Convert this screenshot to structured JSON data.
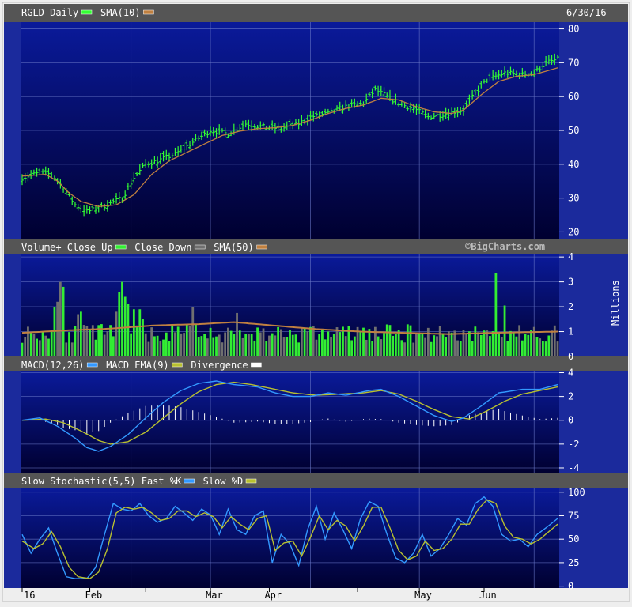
{
  "date_label": "6/30/16",
  "watermark": "©BigCharts.com",
  "x_labels": [
    "16",
    "Feb",
    "Mar",
    "Apr",
    "May",
    "Jun"
  ],
  "colors": {
    "header_bg": "#555555",
    "panel_top": "#0a1a9a",
    "panel_bottom": "#000030",
    "grid": "#6a78c8",
    "price_bar": "#33ff33",
    "sma": "#c08040",
    "vol_up": "#33ee33",
    "vol_down": "#707070",
    "macd": "#3399ff",
    "macd_ema": "#b8c030",
    "divergence": "#ffffff",
    "fast_k": "#3399ff",
    "slow_d": "#b8c030"
  },
  "chart_data": [
    {
      "id": "price",
      "type": "ohlc",
      "legend": [
        {
          "label": "RGLD Daily",
          "color": "#33ff33"
        },
        {
          "label": "SMA(10)",
          "color": "#c08040"
        }
      ],
      "ylim": [
        18,
        82
      ],
      "yticks": [
        20,
        30,
        40,
        50,
        60,
        70,
        80
      ],
      "anchors_close": [
        [
          0,
          36
        ],
        [
          6,
          37.5
        ],
        [
          10,
          37
        ],
        [
          14,
          33
        ],
        [
          18,
          28
        ],
        [
          22,
          26
        ],
        [
          26,
          27
        ],
        [
          30,
          28.5
        ],
        [
          34,
          30
        ],
        [
          38,
          36
        ],
        [
          42,
          40
        ],
        [
          46,
          41
        ],
        [
          52,
          43
        ],
        [
          58,
          46.5
        ],
        [
          64,
          50
        ],
        [
          70,
          49
        ],
        [
          76,
          52
        ],
        [
          82,
          51
        ],
        [
          88,
          50.5
        ],
        [
          94,
          52
        ],
        [
          98,
          54
        ],
        [
          104,
          55
        ],
        [
          110,
          57
        ],
        [
          116,
          58
        ],
        [
          120,
          62
        ],
        [
          124,
          60
        ],
        [
          128,
          58
        ],
        [
          134,
          56
        ],
        [
          138,
          54
        ],
        [
          144,
          55
        ],
        [
          150,
          56
        ],
        [
          154,
          61
        ],
        [
          158,
          65
        ],
        [
          164,
          67
        ],
        [
          170,
          66.5
        ],
        [
          174,
          67
        ],
        [
          178,
          70
        ],
        [
          182,
          71
        ]
      ],
      "anchors_sma": [
        [
          0,
          36.5
        ],
        [
          8,
          37
        ],
        [
          12,
          35
        ],
        [
          16,
          31.5
        ],
        [
          20,
          29
        ],
        [
          26,
          27.5
        ],
        [
          32,
          28
        ],
        [
          38,
          31
        ],
        [
          44,
          37
        ],
        [
          50,
          41
        ],
        [
          56,
          43.5
        ],
        [
          62,
          46
        ],
        [
          68,
          48.5
        ],
        [
          74,
          49.8
        ],
        [
          80,
          50.5
        ],
        [
          86,
          50.8
        ],
        [
          92,
          51.5
        ],
        [
          98,
          53
        ],
        [
          104,
          55
        ],
        [
          110,
          56.5
        ],
        [
          116,
          57.5
        ],
        [
          122,
          59.5
        ],
        [
          128,
          59
        ],
        [
          134,
          57
        ],
        [
          140,
          55.5
        ],
        [
          146,
          55
        ],
        [
          150,
          56
        ],
        [
          156,
          60.5
        ],
        [
          162,
          64.5
        ],
        [
          168,
          66
        ],
        [
          174,
          66.5
        ],
        [
          178,
          67.5
        ],
        [
          182,
          68.5
        ]
      ]
    },
    {
      "id": "volume",
      "type": "bar",
      "legend": [
        {
          "label": "Volume+ Close Up",
          "color": "#33ee33"
        },
        {
          "label": "Close Down",
          "color": "#707070"
        },
        {
          "label": "SMA(50)",
          "color": "#c08040"
        }
      ],
      "ylabel": "Millions",
      "ylim": [
        0,
        4.1
      ],
      "yticks": [
        0,
        1,
        2,
        3,
        4
      ],
      "spikes": [
        [
          11,
          2.0
        ],
        [
          12,
          2.2
        ],
        [
          13,
          3.0
        ],
        [
          14,
          2.8
        ],
        [
          19,
          1.7
        ],
        [
          20,
          1.8
        ],
        [
          32,
          1.8
        ],
        [
          33,
          2.6
        ],
        [
          34,
          3.0
        ],
        [
          35,
          2.4
        ],
        [
          36,
          2.1
        ],
        [
          38,
          1.9
        ],
        [
          40,
          1.9
        ],
        [
          41,
          1.5
        ],
        [
          58,
          2.0
        ],
        [
          73,
          1.75
        ],
        [
          161,
          3.35
        ],
        [
          164,
          2.05
        ]
      ],
      "sma_anchors": [
        [
          0,
          0.95
        ],
        [
          15,
          1.05
        ],
        [
          30,
          1.12
        ],
        [
          45,
          1.25
        ],
        [
          60,
          1.3
        ],
        [
          72,
          1.38
        ],
        [
          85,
          1.25
        ],
        [
          100,
          1.1
        ],
        [
          115,
          1.0
        ],
        [
          130,
          0.95
        ],
        [
          145,
          0.9
        ],
        [
          160,
          0.95
        ],
        [
          182,
          1.0
        ]
      ]
    },
    {
      "id": "macd",
      "type": "line",
      "legend": [
        {
          "label": "MACD(12,26)",
          "color": "#3399ff"
        },
        {
          "label": "MACD EMA(9)",
          "color": "#b8c030"
        },
        {
          "label": "Divergence",
          "color": "#ffffff"
        }
      ],
      "ylim": [
        -4.4,
        4.1
      ],
      "yticks": [
        -4,
        -2,
        0,
        2,
        4
      ],
      "macd_anchors": [
        [
          0,
          0
        ],
        [
          6,
          0.2
        ],
        [
          12,
          -0.5
        ],
        [
          18,
          -1.5
        ],
        [
          22,
          -2.3
        ],
        [
          26,
          -2.6
        ],
        [
          30,
          -2.2
        ],
        [
          36,
          -1.2
        ],
        [
          42,
          0.2
        ],
        [
          48,
          1.5
        ],
        [
          54,
          2.5
        ],
        [
          60,
          3.1
        ],
        [
          66,
          3.3
        ],
        [
          72,
          3.0
        ],
        [
          80,
          2.8
        ],
        [
          86,
          2.3
        ],
        [
          92,
          2.0
        ],
        [
          98,
          2.0
        ],
        [
          104,
          2.3
        ],
        [
          110,
          2.1
        ],
        [
          118,
          2.5
        ],
        [
          122,
          2.6
        ],
        [
          128,
          2.0
        ],
        [
          134,
          1.2
        ],
        [
          140,
          0.4
        ],
        [
          146,
          -0.1
        ],
        [
          150,
          0.2
        ],
        [
          156,
          1.2
        ],
        [
          162,
          2.3
        ],
        [
          170,
          2.6
        ],
        [
          176,
          2.6
        ],
        [
          182,
          3.0
        ]
      ],
      "ema_anchors": [
        [
          0,
          0
        ],
        [
          8,
          0.1
        ],
        [
          14,
          -0.2
        ],
        [
          20,
          -0.9
        ],
        [
          26,
          -1.7
        ],
        [
          30,
          -2.0
        ],
        [
          36,
          -1.8
        ],
        [
          42,
          -1.0
        ],
        [
          48,
          0.2
        ],
        [
          54,
          1.4
        ],
        [
          60,
          2.4
        ],
        [
          66,
          3.0
        ],
        [
          72,
          3.2
        ],
        [
          78,
          3.0
        ],
        [
          86,
          2.6
        ],
        [
          92,
          2.3
        ],
        [
          100,
          2.1
        ],
        [
          108,
          2.2
        ],
        [
          116,
          2.3
        ],
        [
          122,
          2.5
        ],
        [
          128,
          2.2
        ],
        [
          134,
          1.6
        ],
        [
          140,
          0.9
        ],
        [
          146,
          0.3
        ],
        [
          152,
          0.1
        ],
        [
          158,
          0.8
        ],
        [
          164,
          1.6
        ],
        [
          170,
          2.2
        ],
        [
          176,
          2.5
        ],
        [
          182,
          2.8
        ]
      ]
    },
    {
      "id": "stoch",
      "type": "line",
      "legend": [
        {
          "label": "Slow Stochastic(5,5) Fast %K",
          "color": "#3399ff"
        },
        {
          "label": "Slow %D",
          "color": "#b8c030"
        }
      ],
      "ylim": [
        -2,
        104
      ],
      "yticks": [
        0,
        25,
        50,
        75,
        100
      ],
      "k_anchors": [
        [
          0,
          55
        ],
        [
          3,
          35
        ],
        [
          6,
          50
        ],
        [
          9,
          62
        ],
        [
          12,
          35
        ],
        [
          15,
          10
        ],
        [
          18,
          8
        ],
        [
          22,
          8
        ],
        [
          25,
          20
        ],
        [
          28,
          55
        ],
        [
          31,
          88
        ],
        [
          34,
          82
        ],
        [
          37,
          80
        ],
        [
          40,
          88
        ],
        [
          43,
          75
        ],
        [
          46,
          68
        ],
        [
          49,
          72
        ],
        [
          52,
          85
        ],
        [
          55,
          78
        ],
        [
          58,
          70
        ],
        [
          61,
          82
        ],
        [
          64,
          76
        ],
        [
          67,
          55
        ],
        [
          70,
          82
        ],
        [
          73,
          60
        ],
        [
          76,
          55
        ],
        [
          79,
          75
        ],
        [
          82,
          80
        ],
        [
          85,
          25
        ],
        [
          88,
          55
        ],
        [
          91,
          45
        ],
        [
          94,
          22
        ],
        [
          97,
          60
        ],
        [
          100,
          85
        ],
        [
          103,
          50
        ],
        [
          106,
          78
        ],
        [
          109,
          60
        ],
        [
          112,
          40
        ],
        [
          115,
          72
        ],
        [
          118,
          90
        ],
        [
          121,
          85
        ],
        [
          124,
          55
        ],
        [
          127,
          30
        ],
        [
          130,
          25
        ],
        [
          133,
          35
        ],
        [
          136,
          55
        ],
        [
          139,
          32
        ],
        [
          142,
          40
        ],
        [
          145,
          55
        ],
        [
          148,
          72
        ],
        [
          151,
          65
        ],
        [
          154,
          88
        ],
        [
          157,
          95
        ],
        [
          160,
          85
        ],
        [
          163,
          55
        ],
        [
          166,
          48
        ],
        [
          169,
          50
        ],
        [
          172,
          42
        ],
        [
          175,
          55
        ],
        [
          178,
          62
        ],
        [
          182,
          72
        ]
      ],
      "d_anchors": [
        [
          0,
          48
        ],
        [
          4,
          40
        ],
        [
          7,
          45
        ],
        [
          10,
          58
        ],
        [
          13,
          42
        ],
        [
          16,
          20
        ],
        [
          19,
          10
        ],
        [
          23,
          8
        ],
        [
          26,
          15
        ],
        [
          29,
          40
        ],
        [
          32,
          78
        ],
        [
          35,
          84
        ],
        [
          38,
          82
        ],
        [
          41,
          84
        ],
        [
          44,
          78
        ],
        [
          47,
          70
        ],
        [
          50,
          72
        ],
        [
          53,
          80
        ],
        [
          56,
          80
        ],
        [
          59,
          74
        ],
        [
          62,
          78
        ],
        [
          65,
          74
        ],
        [
          68,
          62
        ],
        [
          71,
          74
        ],
        [
          74,
          66
        ],
        [
          77,
          60
        ],
        [
          80,
          72
        ],
        [
          83,
          75
        ],
        [
          86,
          38
        ],
        [
          89,
          46
        ],
        [
          92,
          48
        ],
        [
          95,
          32
        ],
        [
          98,
          52
        ],
        [
          101,
          75
        ],
        [
          104,
          60
        ],
        [
          107,
          70
        ],
        [
          110,
          64
        ],
        [
          113,
          48
        ],
        [
          116,
          64
        ],
        [
          119,
          84
        ],
        [
          122,
          84
        ],
        [
          125,
          62
        ],
        [
          128,
          38
        ],
        [
          131,
          28
        ],
        [
          134,
          32
        ],
        [
          137,
          48
        ],
        [
          140,
          38
        ],
        [
          143,
          40
        ],
        [
          146,
          50
        ],
        [
          149,
          66
        ],
        [
          152,
          66
        ],
        [
          155,
          82
        ],
        [
          158,
          92
        ],
        [
          161,
          88
        ],
        [
          164,
          64
        ],
        [
          167,
          52
        ],
        [
          170,
          50
        ],
        [
          173,
          45
        ],
        [
          176,
          50
        ],
        [
          179,
          58
        ],
        [
          182,
          66
        ]
      ]
    }
  ]
}
